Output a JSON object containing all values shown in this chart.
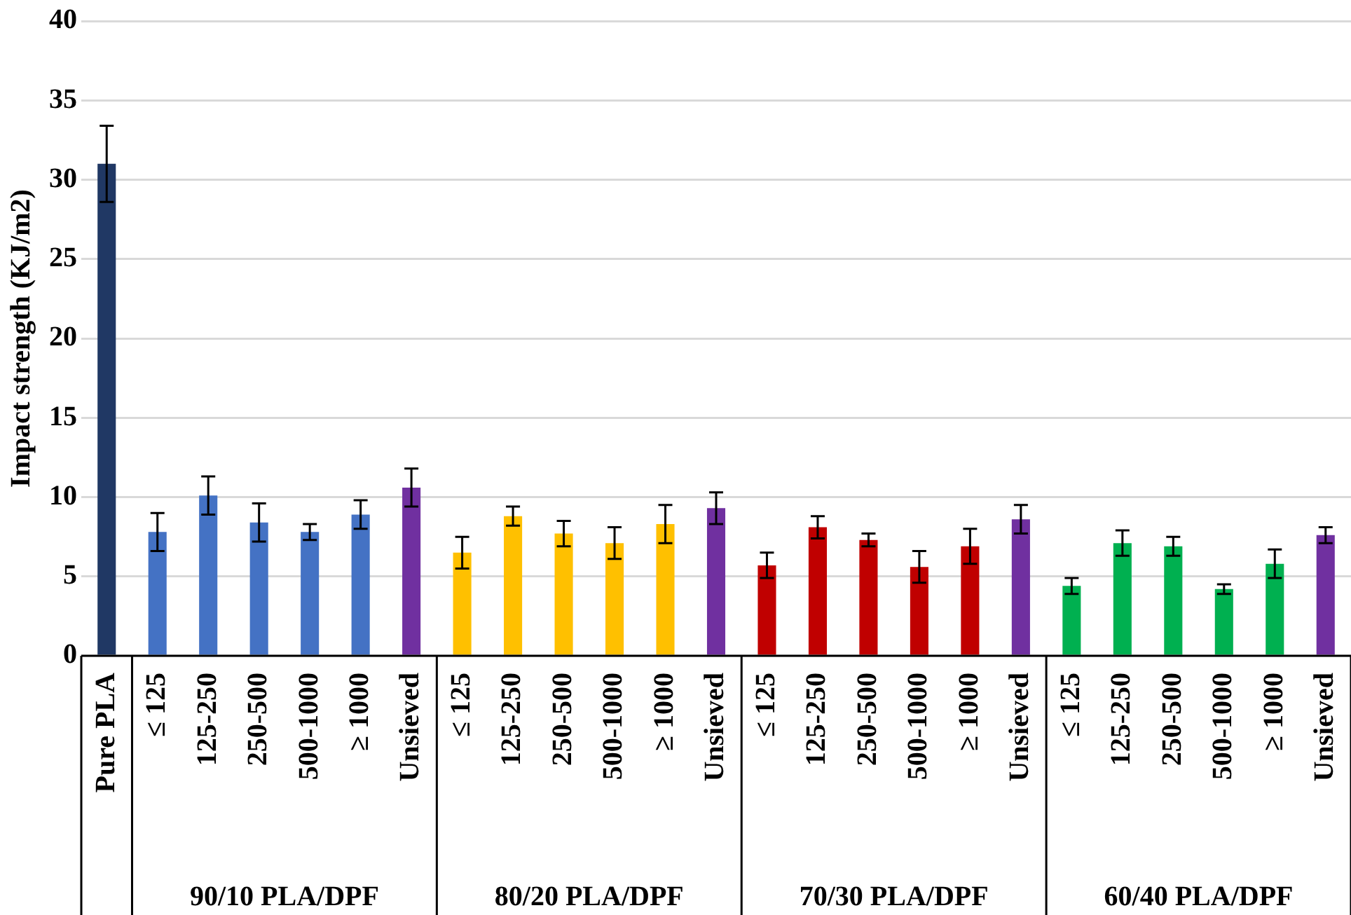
{
  "chart_data": {
    "type": "bar",
    "ylabel": "Impact strength (KJ/m2)",
    "categories": [
      "Pure PLA",
      "≤ 125",
      "125-250",
      "250-500",
      "500-1000",
      "≥ 1000",
      "Unsieved",
      "≤ 125",
      "125-250",
      "250-500",
      "500-1000",
      "≥ 1000",
      "Unsieved",
      "≤ 125",
      "125-250",
      "250-500",
      "500-1000",
      "≥ 1000",
      "Unsieved",
      "≤ 125",
      "125-250",
      "250-500",
      "500-1000",
      "≥ 1000",
      "Unsieved"
    ],
    "values": [
      31,
      7.8,
      10.1,
      8.4,
      7.8,
      8.9,
      10.6,
      6.5,
      8.8,
      7.7,
      7.1,
      8.3,
      9.3,
      5.7,
      8.1,
      7.3,
      5.6,
      6.9,
      8.6,
      4.4,
      7.1,
      6.9,
      4.2,
      5.8,
      7.6
    ],
    "errors": [
      2.4,
      1.2,
      1.2,
      1.2,
      0.5,
      0.9,
      1.2,
      1.0,
      0.6,
      0.8,
      1.0,
      1.2,
      1.0,
      0.8,
      0.7,
      0.4,
      1.0,
      1.1,
      0.9,
      0.5,
      0.8,
      0.6,
      0.3,
      0.9,
      0.5
    ],
    "colors": [
      "#203864",
      "#4472c4",
      "#4472c4",
      "#4472c4",
      "#4472c4",
      "#4472c4",
      "#7030a0",
      "#ffc000",
      "#ffc000",
      "#ffc000",
      "#ffc000",
      "#ffc000",
      "#7030a0",
      "#c00000",
      "#c00000",
      "#c00000",
      "#c00000",
      "#c00000",
      "#7030a0",
      "#00b050",
      "#00b050",
      "#00b050",
      "#00b050",
      "#00b050",
      "#7030a0"
    ],
    "annotations": [
      "90/10 PLA/DPF",
      "80/20 PLA/DPF",
      "70/30 PLA/DPF",
      "60/40 PLA/DPF"
    ],
    "ylim": [
      0,
      40
    ],
    "yticks": [
      0,
      5,
      10,
      15,
      20,
      25,
      30,
      35,
      40
    ],
    "grid": "y",
    "legend": false
  }
}
